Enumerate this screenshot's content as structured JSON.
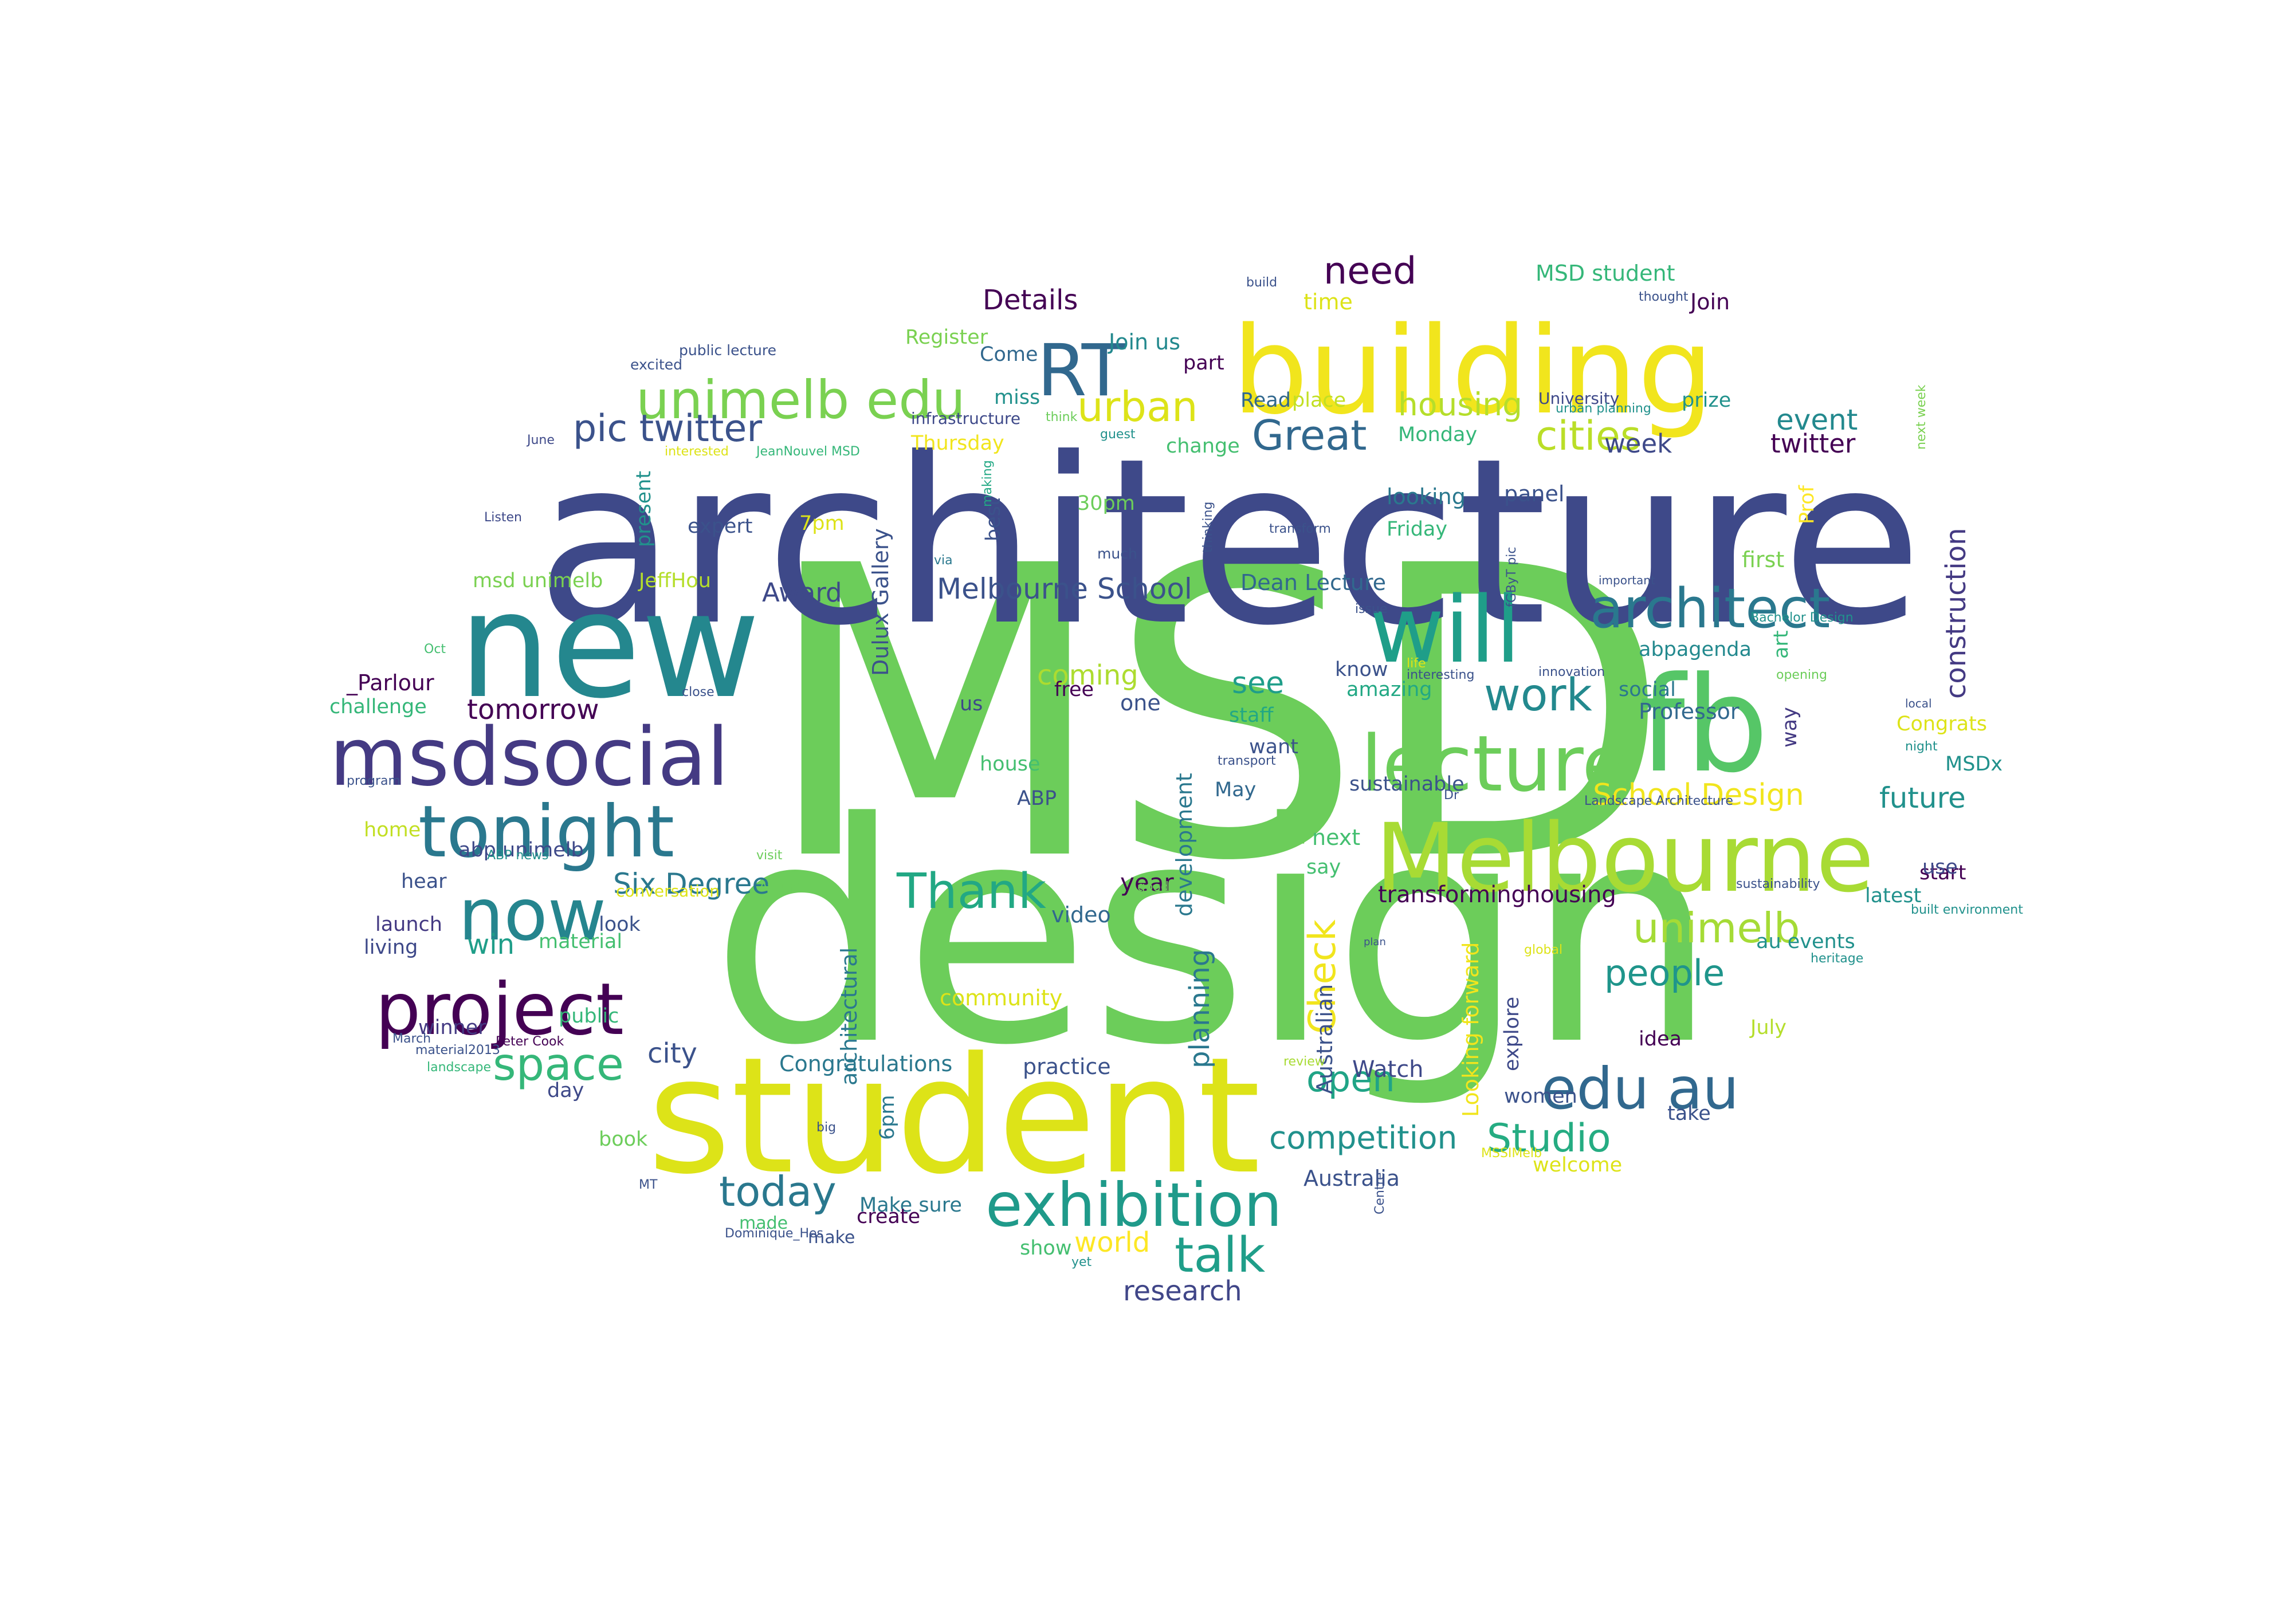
{
  "words": [
    {
      "text": "MSD",
      "color": "#6ccd5a"
    },
    {
      "text": "design",
      "color": "#6ccd5a"
    },
    {
      "text": "architecture",
      "color": "#3e4989"
    },
    {
      "text": "student",
      "color": "#dde318"
    },
    {
      "text": "building",
      "color": "#f1e51d"
    },
    {
      "text": "new",
      "color": "#24878e"
    },
    {
      "text": "fb",
      "color": "#56c667"
    },
    {
      "text": "Melbourne",
      "color": "#a8db34"
    },
    {
      "text": "msdsocial",
      "color": "#443a83"
    },
    {
      "text": "lecture",
      "color": "#6ccd5a"
    },
    {
      "text": "tonight",
      "color": "#2a788e"
    },
    {
      "text": "project",
      "color": "#440154"
    },
    {
      "text": "will",
      "color": "#1f9e89"
    },
    {
      "text": "exhibition",
      "color": "#1f9a8a"
    },
    {
      "text": "now",
      "color": "#25858e"
    },
    {
      "text": "architect",
      "color": "#2a788e"
    },
    {
      "text": "RT",
      "color": "#31688e"
    },
    {
      "text": "edu au",
      "color": "#31688e"
    },
    {
      "text": "unimelb edu",
      "color": "#7ad151"
    },
    {
      "text": "Thank",
      "color": "#22a884"
    },
    {
      "text": "talk",
      "color": "#1f9e89"
    },
    {
      "text": "today",
      "color": "#2a788e"
    },
    {
      "text": "space",
      "color": "#35b779"
    },
    {
      "text": "work",
      "color": "#23898e"
    },
    {
      "text": "Great",
      "color": "#31688e"
    },
    {
      "text": "pic twitter",
      "color": "#3b528b"
    },
    {
      "text": "urban",
      "color": "#dde318"
    },
    {
      "text": "unimelb",
      "color": "#a5db36"
    },
    {
      "text": "people",
      "color": "#1f958b"
    },
    {
      "text": "open",
      "color": "#20a486"
    },
    {
      "text": "Studio",
      "color": "#25ac82"
    },
    {
      "text": "Check",
      "color": "#f1e51d"
    },
    {
      "text": "cities",
      "color": "#bade28"
    },
    {
      "text": "need",
      "color": "#440154"
    },
    {
      "text": "Six Degree",
      "color": "#2a788e"
    },
    {
      "text": "School Design",
      "color": "#f1e51d"
    },
    {
      "text": "competition",
      "color": "#21918c"
    },
    {
      "text": "housing",
      "color": "#b5de2b"
    },
    {
      "text": "construction",
      "color": "#443a83"
    },
    {
      "text": "Details",
      "color": "#440154"
    },
    {
      "text": "tomorrow",
      "color": "#440154"
    },
    {
      "text": "win",
      "color": "#1f9e89"
    },
    {
      "text": "planning",
      "color": "#2a788e"
    },
    {
      "text": "see",
      "color": "#1f9e89"
    },
    {
      "text": "city",
      "color": "#3b528b"
    },
    {
      "text": "event",
      "color": "#23898e"
    },
    {
      "text": "future",
      "color": "#21918c"
    },
    {
      "text": "research",
      "color": "#404688"
    },
    {
      "text": "Melbourne School",
      "color": "#3b528b"
    },
    {
      "text": "twitter",
      "color": "#440154"
    },
    {
      "text": "week",
      "color": "#3e4989"
    },
    {
      "text": "coming",
      "color": "#addc30"
    },
    {
      "text": "world",
      "color": "#fde725"
    },
    {
      "text": "Award",
      "color": "#3e4989"
    },
    {
      "text": "transforminghousing",
      "color": "#440154"
    },
    {
      "text": "Australian",
      "color": "#3b528b"
    },
    {
      "text": "Looking forward",
      "color": "#f1e51d"
    },
    {
      "text": "Watch",
      "color": "#3e4989"
    },
    {
      "text": "Congratulations",
      "color": "#2a788e"
    },
    {
      "text": "practice",
      "color": "#3b528b"
    },
    {
      "text": "Professor",
      "color": "#31688e"
    },
    {
      "text": "next",
      "color": "#44bf70"
    },
    {
      "text": "development",
      "color": "#2a788e"
    },
    {
      "text": "architectural",
      "color": "#2a788e"
    },
    {
      "text": "Dulux Gallery",
      "color": "#3b528b"
    },
    {
      "text": "Australia",
      "color": "#3b528b"
    },
    {
      "text": "community",
      "color": "#dde318"
    },
    {
      "text": "video",
      "color": "#31688e"
    },
    {
      "text": "year",
      "color": "#440154"
    },
    {
      "text": "Join us",
      "color": "#23898e"
    },
    {
      "text": "Register",
      "color": "#7ad151"
    },
    {
      "text": "MSD student",
      "color": "#35b779"
    },
    {
      "text": "Join",
      "color": "#440154"
    },
    {
      "text": "prize",
      "color": "#21918c"
    },
    {
      "text": "University",
      "color": "#3e4989"
    },
    {
      "text": "time",
      "color": "#dde318"
    },
    {
      "text": "Come",
      "color": "#31688e"
    },
    {
      "text": "part",
      "color": "#440154"
    },
    {
      "text": "miss",
      "color": "#21918c"
    },
    {
      "text": "Read",
      "color": "#31688e"
    },
    {
      "text": "place",
      "color": "#c2df23"
    },
    {
      "text": "Monday",
      "color": "#35b779"
    },
    {
      "text": "change",
      "color": "#44bf70"
    },
    {
      "text": "Thursday",
      "color": "#f1e51d"
    },
    {
      "text": "infrastructure",
      "color": "#3e4989"
    },
    {
      "text": "30pm",
      "color": "#6ccd5a"
    },
    {
      "text": "7pm",
      "color": "#dde318"
    },
    {
      "text": "expert",
      "color": "#3b528b"
    },
    {
      "text": "present",
      "color": "#21918c"
    },
    {
      "text": "best",
      "color": "#3b528b"
    },
    {
      "text": "looking",
      "color": "#2a788e"
    },
    {
      "text": "panel",
      "color": "#3b528b"
    },
    {
      "text": "Friday",
      "color": "#35b779"
    },
    {
      "text": "Prof",
      "color": "#fde725"
    },
    {
      "text": "first",
      "color": "#7ad151"
    },
    {
      "text": "Dean Lecture",
      "color": "#31688e"
    },
    {
      "text": "msd unimelb",
      "color": "#7ad151"
    },
    {
      "text": "JeffHou",
      "color": "#b5de2b"
    },
    {
      "text": "abpagenda",
      "color": "#23898e"
    },
    {
      "text": "social",
      "color": "#2a788e"
    },
    {
      "text": "amazing",
      "color": "#22a884"
    },
    {
      "text": "know",
      "color": "#3b528b"
    },
    {
      "text": "free",
      "color": "#440154"
    },
    {
      "text": "one",
      "color": "#3b528b"
    },
    {
      "text": "us",
      "color": "#3e4989"
    },
    {
      "text": "staff",
      "color": "#22a884"
    },
    {
      "text": "want",
      "color": "#3b528b"
    },
    {
      "text": "house",
      "color": "#44bf70"
    },
    {
      "text": "ABP",
      "color": "#3b528b"
    },
    {
      "text": "May",
      "color": "#31688e"
    },
    {
      "text": "sustainable",
      "color": "#3b528b"
    },
    {
      "text": "way",
      "color": "#443a83"
    },
    {
      "text": "Congrats",
      "color": "#dde318"
    },
    {
      "text": "MSDx",
      "color": "#21918c"
    },
    {
      "text": "art",
      "color": "#35b779"
    },
    {
      "text": "_Parlour",
      "color": "#440154"
    },
    {
      "text": "challenge",
      "color": "#35b779"
    },
    {
      "text": "home",
      "color": "#c2df23"
    },
    {
      "text": "abp unimelb",
      "color": "#3e4989"
    },
    {
      "text": "hear",
      "color": "#3b528b"
    },
    {
      "text": "launch",
      "color": "#443a83"
    },
    {
      "text": "living",
      "color": "#3e4989"
    },
    {
      "text": "look",
      "color": "#3b528b"
    },
    {
      "text": "material",
      "color": "#44bf70"
    },
    {
      "text": "winner",
      "color": "#443a83"
    },
    {
      "text": "public",
      "color": "#35b779"
    },
    {
      "text": "day",
      "color": "#3e4989"
    },
    {
      "text": "say",
      "color": "#44bf70"
    },
    {
      "text": "start",
      "color": "#440154"
    },
    {
      "text": "use",
      "color": "#3e4989"
    },
    {
      "text": "latest",
      "color": "#21918c"
    },
    {
      "text": "au events",
      "color": "#21918c"
    },
    {
      "text": "idea",
      "color": "#440154"
    },
    {
      "text": "July",
      "color": "#b5de2b"
    },
    {
      "text": "take",
      "color": "#3b528b"
    },
    {
      "text": "women",
      "color": "#3b528b"
    },
    {
      "text": "explore",
      "color": "#3e4989"
    },
    {
      "text": "welcome",
      "color": "#dde318"
    },
    {
      "text": "book",
      "color": "#6ccd5a"
    },
    {
      "text": "6pm",
      "color": "#2a788e"
    },
    {
      "text": "Make sure",
      "color": "#2a788e"
    },
    {
      "text": "create",
      "color": "#440154"
    },
    {
      "text": "made",
      "color": "#44bf70"
    },
    {
      "text": "make",
      "color": "#3b528b"
    },
    {
      "text": "show",
      "color": "#44bf70"
    },
    {
      "text": "public lecture",
      "color": "#3b528b"
    },
    {
      "text": "excited",
      "color": "#3b528b"
    },
    {
      "text": "June",
      "color": "#3e4989"
    },
    {
      "text": "Listen",
      "color": "#3e4989"
    },
    {
      "text": "interested",
      "color": "#dde318"
    },
    {
      "text": "JeanNouvel MSD",
      "color": "#35b779"
    },
    {
      "text": "guest",
      "color": "#21918c"
    },
    {
      "text": "think",
      "color": "#6ccd5a"
    },
    {
      "text": "making",
      "color": "#22a884"
    },
    {
      "text": "via",
      "color": "#2a788e"
    },
    {
      "text": "much",
      "color": "#3b528b"
    },
    {
      "text": "thinking",
      "color": "#3b528b"
    },
    {
      "text": "transform",
      "color": "#3b528b"
    },
    {
      "text": "build",
      "color": "#3b528b"
    },
    {
      "text": "thought",
      "color": "#3b528b"
    },
    {
      "text": "urban planning",
      "color": "#21918c"
    },
    {
      "text": "next week",
      "color": "#7ad151"
    },
    {
      "text": "important",
      "color": "#3b528b"
    },
    {
      "text": "Bachelor Design",
      "color": "#21918c"
    },
    {
      "text": "issue",
      "color": "#3b528b"
    },
    {
      "text": "fGByT pic",
      "color": "#3b528b"
    },
    {
      "text": "life",
      "color": "#dde318"
    },
    {
      "text": "opening",
      "color": "#6ccd5a"
    },
    {
      "text": "interesting",
      "color": "#3b528b"
    },
    {
      "text": "innovation",
      "color": "#3b528b"
    },
    {
      "text": "local",
      "color": "#3b528b"
    },
    {
      "text": "night",
      "color": "#21918c"
    },
    {
      "text": "transport",
      "color": "#3b528b"
    },
    {
      "text": "Dr",
      "color": "#3b528b"
    },
    {
      "text": "Landscape Architecture",
      "color": "#3b528b"
    },
    {
      "text": "Oct",
      "color": "#44bf70"
    },
    {
      "text": "close",
      "color": "#3b528b"
    },
    {
      "text": "ABP news",
      "color": "#21918c"
    },
    {
      "text": "program",
      "color": "#3b528b"
    },
    {
      "text": "visit",
      "color": "#6ccd5a"
    },
    {
      "text": "conversation",
      "color": "#dde318"
    },
    {
      "text": "Atrium",
      "color": "#6ccd5a"
    },
    {
      "text": "good",
      "color": "#6ccd5a"
    },
    {
      "text": "sustainability",
      "color": "#3b528b"
    },
    {
      "text": "built environment",
      "color": "#21918c"
    },
    {
      "text": "heritage",
      "color": "#21918c"
    },
    {
      "text": "plan",
      "color": "#3b528b"
    },
    {
      "text": "global",
      "color": "#dde318"
    },
    {
      "text": "March",
      "color": "#3b528b"
    },
    {
      "text": "Peter Cook",
      "color": "#440154"
    },
    {
      "text": "material2013",
      "color": "#3b528b"
    },
    {
      "text": "landscape",
      "color": "#35b779"
    },
    {
      "text": "review",
      "color": "#a8db34"
    },
    {
      "text": "big",
      "color": "#3b528b"
    },
    {
      "text": "MT",
      "color": "#3b528b"
    },
    {
      "text": "MSSIMelb",
      "color": "#dde318"
    },
    {
      "text": "Centre",
      "color": "#3b528b"
    },
    {
      "text": "yet",
      "color": "#21918c"
    },
    {
      "text": "Dominique_Hes",
      "color": "#3b528b"
    },
    {
      "text": "give",
      "color": "#3b528b"
    }
  ]
}
